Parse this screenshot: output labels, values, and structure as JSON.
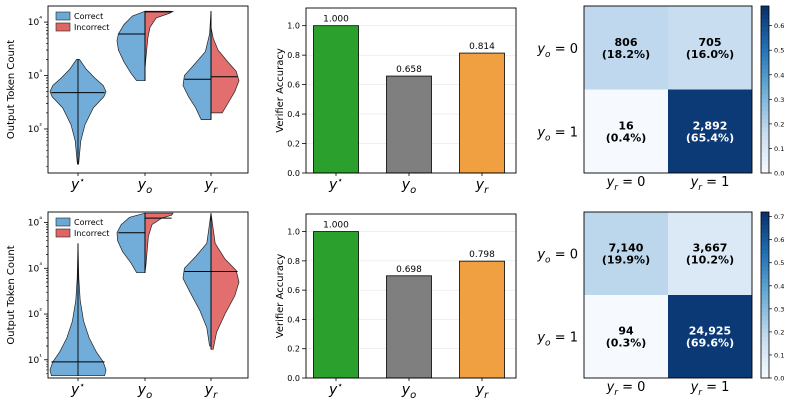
{
  "colors": {
    "correct": "#6aa8d6",
    "incorrect": "#e06666",
    "acc_bars": [
      "#2ca02c",
      "#7f7f7f",
      "#f0a040"
    ],
    "cmap_low": "#f7fbff",
    "cmap_high": "#08306b"
  },
  "chart_data": [
    {
      "type": "violin",
      "panel": "top-left",
      "ylabel": "Output Token Count",
      "yscale": "log",
      "ylim": [
        15,
        20000
      ],
      "ytick_labels": [
        "10²",
        "10³",
        "10⁴"
      ],
      "ytick_values": [
        100,
        1000,
        10000
      ],
      "categories": [
        "y*",
        "y_o",
        "y_r"
      ],
      "legend": {
        "placement": "upper-left",
        "entries": [
          "Correct",
          "Incorrect"
        ]
      },
      "violins": [
        {
          "category": "y*",
          "kind": "full",
          "group": "Correct",
          "min": 22,
          "max": 2000,
          "median": 480,
          "profile": [
            [
              22,
              0.02
            ],
            [
              60,
              0.1
            ],
            [
              120,
              0.25
            ],
            [
              250,
              0.55
            ],
            [
              400,
              0.92
            ],
            [
              500,
              1.0
            ],
            [
              650,
              0.9
            ],
            [
              900,
              0.6
            ],
            [
              1300,
              0.3
            ],
            [
              2000,
              0.05
            ]
          ]
        },
        {
          "category": "y_o",
          "kind": "split",
          "side": "left",
          "group": "Correct",
          "min": 800,
          "max": 16000,
          "median": 6000,
          "profile": [
            [
              800,
              0.3
            ],
            [
              1100,
              0.5
            ],
            [
              1800,
              0.75
            ],
            [
              3000,
              0.95
            ],
            [
              4500,
              1.0
            ],
            [
              6000,
              0.95
            ],
            [
              9000,
              0.75
            ],
            [
              13000,
              0.45
            ],
            [
              16000,
              0.0
            ]
          ]
        },
        {
          "category": "y_o",
          "kind": "split",
          "side": "right",
          "group": "Incorrect",
          "min": 1300,
          "max": 16000,
          "median": 15500,
          "profile": [
            [
              1300,
              0.0
            ],
            [
              2000,
              0.03
            ],
            [
              3000,
              0.06
            ],
            [
              5000,
              0.1
            ],
            [
              8000,
              0.18
            ],
            [
              12000,
              0.4
            ],
            [
              14500,
              0.85
            ],
            [
              15800,
              1.0
            ],
            [
              16000,
              0.9
            ]
          ]
        },
        {
          "category": "y_r",
          "kind": "split",
          "side": "left",
          "group": "Correct",
          "min": 150,
          "max": 16000,
          "median": 850,
          "profile": [
            [
              150,
              0.35
            ],
            [
              250,
              0.55
            ],
            [
              400,
              0.8
            ],
            [
              650,
              1.0
            ],
            [
              1000,
              0.95
            ],
            [
              1600,
              0.6
            ],
            [
              2800,
              0.2
            ],
            [
              6000,
              0.05
            ],
            [
              16000,
              0.0
            ]
          ]
        },
        {
          "category": "y_r",
          "kind": "split",
          "side": "right",
          "group": "Incorrect",
          "min": 200,
          "max": 8000,
          "median": 950,
          "profile": [
            [
              200,
              0.4
            ],
            [
              300,
              0.6
            ],
            [
              500,
              0.85
            ],
            [
              800,
              1.0
            ],
            [
              1200,
              0.9
            ],
            [
              1800,
              0.6
            ],
            [
              3000,
              0.25
            ],
            [
              5000,
              0.08
            ],
            [
              8000,
              0.0
            ]
          ]
        }
      ]
    },
    {
      "type": "bar",
      "panel": "top-middle",
      "ylabel": "Verifier Accuracy",
      "ylim": [
        0,
        1.12
      ],
      "ytick_labels": [
        "0.0",
        "0.2",
        "0.4",
        "0.6",
        "0.8",
        "1.0"
      ],
      "categories": [
        "y*",
        "y_o",
        "y_r"
      ],
      "values": [
        1.0,
        0.658,
        0.814
      ],
      "value_labels": [
        "1.000",
        "0.658",
        "0.814"
      ]
    },
    {
      "type": "heatmap",
      "panel": "top-right",
      "row_labels": [
        "y_o = 0",
        "y_o = 1"
      ],
      "col_labels": [
        "y_r = 0",
        "y_r = 1"
      ],
      "values": [
        [
          0.182,
          0.16
        ],
        [
          0.004,
          0.654
        ]
      ],
      "cell_counts": [
        [
          "806",
          "705"
        ],
        [
          "16",
          "2,892"
        ]
      ],
      "cell_percents": [
        [
          "(18.2%)",
          "(16.0%)"
        ],
        [
          "(0.4%)",
          "(65.4%)"
        ]
      ],
      "colorbar_range": [
        0,
        0.68
      ],
      "colorbar_tick_labels": [
        "0.0",
        "0.1",
        "0.2",
        "0.3",
        "0.4",
        "0.5",
        "0.6"
      ]
    },
    {
      "type": "violin",
      "panel": "bottom-left",
      "ylabel": "Output Token Count",
      "yscale": "log",
      "ylim": [
        4,
        17000
      ],
      "ytick_labels": [
        "10¹",
        "10²",
        "10³",
        "10⁴"
      ],
      "ytick_values": [
        10,
        100,
        1000,
        10000
      ],
      "categories": [
        "y*",
        "y_o",
        "y_r"
      ],
      "legend": {
        "placement": "upper-left",
        "entries": [
          "Correct",
          "Incorrect"
        ]
      },
      "violins": [
        {
          "category": "y*",
          "kind": "full",
          "group": "Correct",
          "min": 4.5,
          "max": 3500,
          "median": 9,
          "profile": [
            [
              4.5,
              0.95
            ],
            [
              6,
              1.0
            ],
            [
              9,
              0.9
            ],
            [
              15,
              0.65
            ],
            [
              30,
              0.4
            ],
            [
              70,
              0.2
            ],
            [
              200,
              0.08
            ],
            [
              600,
              0.03
            ],
            [
              3500,
              0.0
            ]
          ]
        },
        {
          "category": "y_o",
          "kind": "split",
          "side": "left",
          "group": "Correct",
          "min": 800,
          "max": 16000,
          "median": 6000,
          "profile": [
            [
              800,
              0.3
            ],
            [
              1300,
              0.5
            ],
            [
              2300,
              0.8
            ],
            [
              4000,
              0.98
            ],
            [
              6000,
              1.0
            ],
            [
              9000,
              0.85
            ],
            [
              13000,
              0.55
            ],
            [
              16000,
              0.0
            ]
          ]
        },
        {
          "category": "y_o",
          "kind": "split",
          "side": "right",
          "group": "Incorrect",
          "min": 800,
          "max": 16000,
          "median": 12500,
          "profile": [
            [
              800,
              0.0
            ],
            [
              1300,
              0.04
            ],
            [
              2500,
              0.08
            ],
            [
              5000,
              0.12
            ],
            [
              9000,
              0.25
            ],
            [
              12500,
              0.6
            ],
            [
              14500,
              0.95
            ],
            [
              16000,
              1.0
            ]
          ]
        },
        {
          "category": "y_r",
          "kind": "split",
          "side": "left",
          "group": "Correct",
          "min": 20,
          "max": 16000,
          "median": 850,
          "profile": [
            [
              20,
              0.05
            ],
            [
              50,
              0.15
            ],
            [
              120,
              0.4
            ],
            [
              300,
              0.75
            ],
            [
              600,
              1.0
            ],
            [
              1000,
              0.95
            ],
            [
              1800,
              0.55
            ],
            [
              3500,
              0.15
            ],
            [
              16000,
              0.0
            ]
          ]
        },
        {
          "category": "y_r",
          "kind": "split",
          "side": "right",
          "group": "Incorrect",
          "min": 17,
          "max": 16000,
          "median": 850,
          "profile": [
            [
              17,
              0.08
            ],
            [
              40,
              0.2
            ],
            [
              100,
              0.5
            ],
            [
              250,
              0.85
            ],
            [
              500,
              1.0
            ],
            [
              900,
              0.9
            ],
            [
              1600,
              0.5
            ],
            [
              3500,
              0.15
            ],
            [
              16000,
              0.0
            ]
          ]
        }
      ]
    },
    {
      "type": "bar",
      "panel": "bottom-middle",
      "ylabel": "Verifier Accuracy",
      "ylim": [
        0,
        1.12
      ],
      "ytick_labels": [
        "0.0",
        "0.2",
        "0.4",
        "0.6",
        "0.8",
        "1.0"
      ],
      "categories": [
        "y*",
        "y_o",
        "y_r"
      ],
      "values": [
        1.0,
        0.698,
        0.798
      ],
      "value_labels": [
        "1.000",
        "0.698",
        "0.798"
      ]
    },
    {
      "type": "heatmap",
      "panel": "bottom-right",
      "row_labels": [
        "y_o = 0",
        "y_o = 1"
      ],
      "col_labels": [
        "y_r = 0",
        "y_r = 1"
      ],
      "values": [
        [
          0.199,
          0.102
        ],
        [
          0.003,
          0.696
        ]
      ],
      "cell_counts": [
        [
          "7,140",
          "3,667"
        ],
        [
          "94",
          "24,925"
        ]
      ],
      "cell_percents": [
        [
          "(19.9%)",
          "(10.2%)"
        ],
        [
          "(0.3%)",
          "(69.6%)"
        ]
      ],
      "colorbar_range": [
        0,
        0.72
      ],
      "colorbar_tick_labels": [
        "0.0",
        "0.1",
        "0.2",
        "0.3",
        "0.4",
        "0.5",
        "0.6",
        "0.7"
      ]
    }
  ]
}
